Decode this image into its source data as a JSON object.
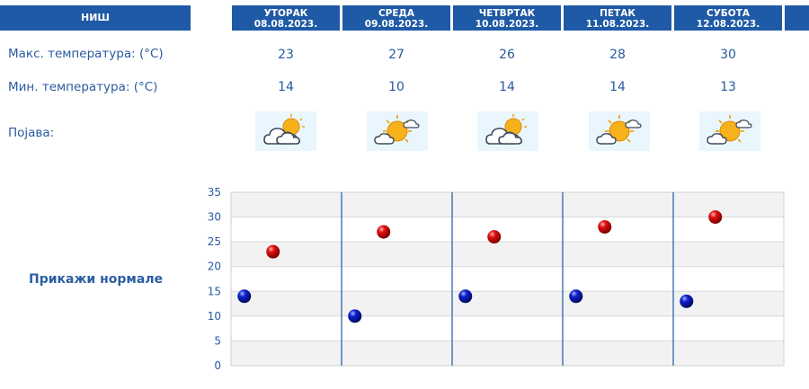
{
  "header": {
    "city": "НИШ",
    "days": [
      {
        "name": "УТОРАК",
        "date": "08.08.2023."
      },
      {
        "name": "СРЕДА",
        "date": "09.08.2023."
      },
      {
        "name": "ЧЕТВРТАК",
        "date": "10.08.2023."
      },
      {
        "name": "ПЕТАК",
        "date": "11.08.2023."
      },
      {
        "name": "СУБОТА",
        "date": "12.08.2023."
      }
    ]
  },
  "rows": {
    "max_label": "Макс. температура: (°C)",
    "min_label": "Мин. температура: (°C)",
    "phenomenon_label": "Појава:"
  },
  "max_values": [
    "23",
    "27",
    "26",
    "28",
    "30"
  ],
  "min_values": [
    "14",
    "10",
    "14",
    "14",
    "13"
  ],
  "weather_icons": [
    "cloudy-sun-icon",
    "partly-sunny-icon",
    "cloudy-sun-icon",
    "partly-sunny-icon",
    "partly-sunny-icon"
  ],
  "show_normals_label": "Прикажи нормале",
  "colors": {
    "header_bg": "#1f5aa6",
    "text": "#2a5aa0",
    "max_point": "#c80000",
    "min_point": "#0a14b4",
    "day_divider": "#1f5aa6",
    "band": "#f2f2f2"
  },
  "chart_data": {
    "type": "scatter",
    "categories": [
      "08.08.2023.",
      "09.08.2023.",
      "10.08.2023.",
      "11.08.2023.",
      "12.08.2023."
    ],
    "series": [
      {
        "values": [
          14,
          10,
          14,
          14,
          13
        ]
      },
      {
        "values": [
          23,
          27,
          26,
          28,
          30
        ]
      }
    ],
    "ylim": [
      0,
      35
    ],
    "yticks": [
      "0",
      "5",
      "10",
      "15",
      "20",
      "25",
      "30",
      "35"
    ],
    "grid": true,
    "alternating_bands": true
  }
}
